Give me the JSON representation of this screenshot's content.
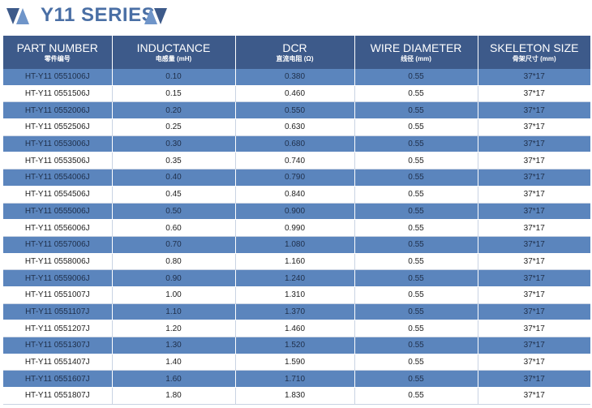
{
  "title": "Y11 SERIES",
  "colors": {
    "header": "#3d5a8a",
    "odd_row": "#5b85bd",
    "even_row": "#ffffff",
    "title": "#4a6fa5"
  },
  "columns": [
    {
      "en": "PART NUMBER",
      "cn": "零件编号"
    },
    {
      "en": "INDUCTANCE",
      "cn": "电感量 (mH)"
    },
    {
      "en": "DCR",
      "cn": "直流电阻 (Ω)"
    },
    {
      "en": "WIRE DIAMETER",
      "cn": "线径 (mm)"
    },
    {
      "en": "SKELETON SIZE",
      "cn": "骨架尺寸 (mm)"
    }
  ],
  "rows": [
    [
      "HT-Y11 0551006J",
      "0.10",
      "0.380",
      "0.55",
      "37*17"
    ],
    [
      "HT-Y11 0551506J",
      "0.15",
      "0.460",
      "0.55",
      "37*17"
    ],
    [
      "HT-Y11 0552006J",
      "0.20",
      "0.550",
      "0.55",
      "37*17"
    ],
    [
      "HT-Y11 0552506J",
      "0.25",
      "0.630",
      "0.55",
      "37*17"
    ],
    [
      "HT-Y11 0553006J",
      "0.30",
      "0.680",
      "0.55",
      "37*17"
    ],
    [
      "HT-Y11 0553506J",
      "0.35",
      "0.740",
      "0.55",
      "37*17"
    ],
    [
      "HT-Y11 0554006J",
      "0.40",
      "0.790",
      "0.55",
      "37*17"
    ],
    [
      "HT-Y11 0554506J",
      "0.45",
      "0.840",
      "0.55",
      "37*17"
    ],
    [
      "HT-Y11 0555006J",
      "0.50",
      "0.900",
      "0.55",
      "37*17"
    ],
    [
      "HT-Y11 0556006J",
      "0.60",
      "0.990",
      "0.55",
      "37*17"
    ],
    [
      "HT-Y11 0557006J",
      "0.70",
      "1.080",
      "0.55",
      "37*17"
    ],
    [
      "HT-Y11 0558006J",
      "0.80",
      "1.160",
      "0.55",
      "37*17"
    ],
    [
      "HT-Y11 0559006J",
      "0.90",
      "1.240",
      "0.55",
      "37*17"
    ],
    [
      "HT-Y11 0551007J",
      "1.00",
      "1.310",
      "0.55",
      "37*17"
    ],
    [
      "HT-Y11 0551107J",
      "1.10",
      "1.370",
      "0.55",
      "37*17"
    ],
    [
      "HT-Y11 0551207J",
      "1.20",
      "1.460",
      "0.55",
      "37*17"
    ],
    [
      "HT-Y11 0551307J",
      "1.30",
      "1.520",
      "0.55",
      "37*17"
    ],
    [
      "HT-Y11 0551407J",
      "1.40",
      "1.590",
      "0.55",
      "37*17"
    ],
    [
      "HT-Y11 0551607J",
      "1.60",
      "1.710",
      "0.55",
      "37*17"
    ],
    [
      "HT-Y11 0551807J",
      "1.80",
      "1.830",
      "0.55",
      "37*17"
    ]
  ]
}
